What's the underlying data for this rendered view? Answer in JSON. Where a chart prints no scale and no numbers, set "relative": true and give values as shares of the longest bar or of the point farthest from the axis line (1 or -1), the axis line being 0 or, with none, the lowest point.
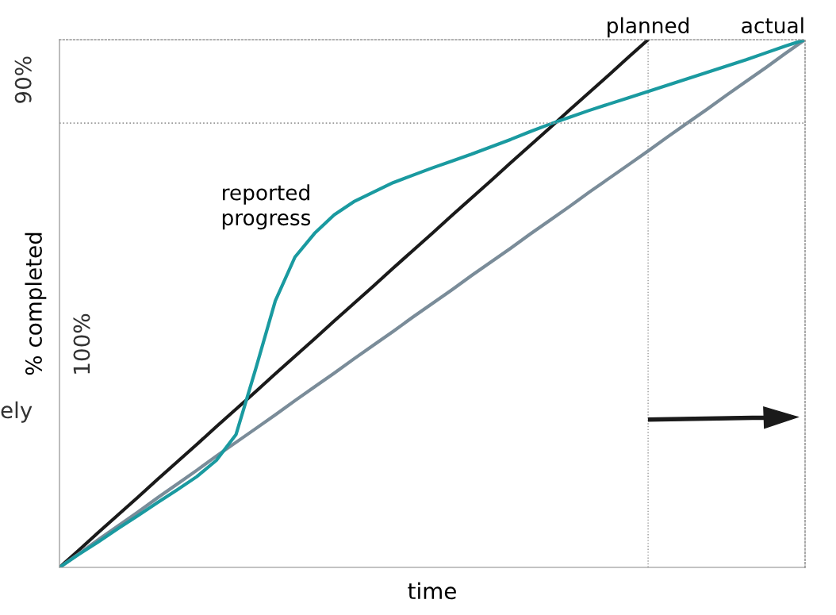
{
  "chart_data": {
    "type": "line",
    "relative": true,
    "xlabel": "time",
    "ylabel": "% completed",
    "legend": false,
    "marker": "none",
    "line_style": "solid",
    "categories": [
      null,
      null,
      null,
      null,
      null,
      null,
      null,
      null,
      null,
      null,
      null,
      null,
      null,
      null,
      null,
      null,
      null,
      null,
      null,
      null,
      null,
      null,
      null,
      null,
      null,
      null,
      null,
      null,
      null,
      null,
      null,
      null,
      null,
      null,
      null,
      null,
      null,
      null,
      null
    ],
    "series": [
      {
        "name": "planned",
        "color": "#1a1a1a",
        "values": [
          0,
          0.033,
          0.067,
          0.1,
          0.133,
          0.167,
          0.2,
          0.233,
          0.267,
          0.3,
          0.333,
          0.367,
          0.4,
          0.433,
          0.467,
          0.5,
          0.533,
          0.567,
          0.6,
          0.633,
          0.667,
          0.7,
          0.733,
          0.767,
          0.8,
          0.833,
          0.867,
          0.9,
          0.933,
          0.967,
          1,
          null,
          null,
          null,
          null,
          null,
          null,
          null,
          null
        ]
      },
      {
        "name": "actual",
        "color": "#7a8c99",
        "values": [
          0,
          0.026,
          0.053,
          0.079,
          0.105,
          0.132,
          0.158,
          0.184,
          0.211,
          0.237,
          0.263,
          0.289,
          0.316,
          0.342,
          0.368,
          0.395,
          0.421,
          0.447,
          0.474,
          0.5,
          0.526,
          0.553,
          0.579,
          0.605,
          0.632,
          0.658,
          0.684,
          0.711,
          0.737,
          0.763,
          0.789,
          0.816,
          0.842,
          0.868,
          0.895,
          0.921,
          0.947,
          0.974,
          1
        ]
      },
      {
        "name": "reported progress",
        "color": "#1a9aa0",
        "values": [
          0,
          0.025,
          0.049,
          0.074,
          0.098,
          0.123,
          0.147,
          0.172,
          0.203,
          0.252,
          0.376,
          0.505,
          0.588,
          0.633,
          0.668,
          0.693,
          0.711,
          0.729,
          0.743,
          0.757,
          0.77,
          0.783,
          0.797,
          0.811,
          0.826,
          0.84,
          0.853,
          0.866,
          0.878,
          0.89,
          0.902,
          0.914,
          0.926,
          0.938,
          0.95,
          0.962,
          0.975,
          0.988,
          1
        ]
      }
    ],
    "ref_lines": [
      {
        "axis": "y",
        "value": 0.842,
        "color": "#999999",
        "line_style": "dotted"
      }
    ],
    "annotations": [
      "90%",
      "100%",
      "ely"
    ]
  }
}
